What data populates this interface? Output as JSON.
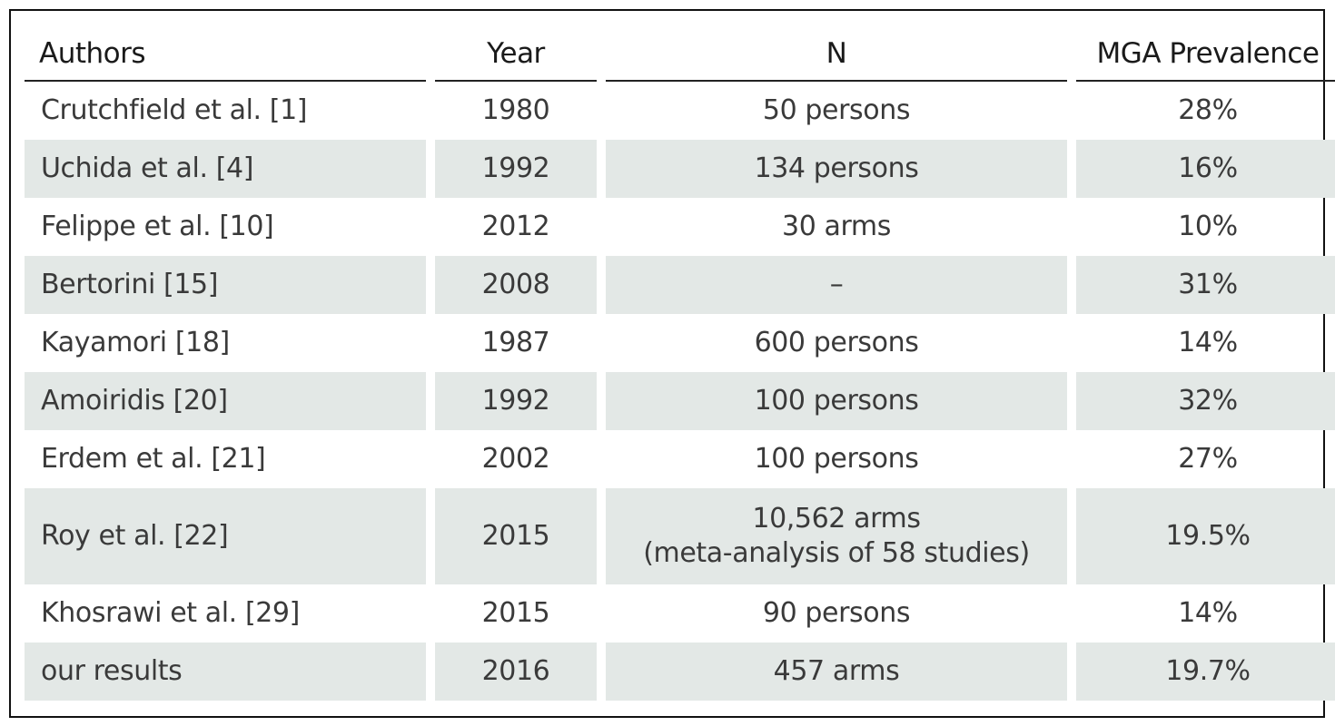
{
  "table": {
    "headers": {
      "authors": "Authors",
      "year": "Year",
      "n": "N",
      "prevalence": "MGA Prevalence"
    },
    "rows": [
      {
        "authors": "Crutchfield et al. [1]",
        "year": "1980",
        "n": "50 persons",
        "n_note": "",
        "prevalence": "28%"
      },
      {
        "authors": "Uchida et al. [4]",
        "year": "1992",
        "n": "134 persons",
        "n_note": "",
        "prevalence": "16%"
      },
      {
        "authors": "Felippe et al. [10]",
        "year": "2012",
        "n": "30 arms",
        "n_note": "",
        "prevalence": "10%"
      },
      {
        "authors": "Bertorini [15]",
        "year": "2008",
        "n": "–",
        "n_note": "",
        "prevalence": "31%"
      },
      {
        "authors": "Kayamori [18]",
        "year": "1987",
        "n": "600 persons",
        "n_note": "",
        "prevalence": "14%"
      },
      {
        "authors": "Amoiridis [20]",
        "year": "1992",
        "n": "100 persons",
        "n_note": "",
        "prevalence": "32%"
      },
      {
        "authors": "Erdem et al. [21]",
        "year": "2002",
        "n": "100 persons",
        "n_note": "",
        "prevalence": "27%"
      },
      {
        "authors": "Roy et al. [22]",
        "year": "2015",
        "n": "10,562 arms",
        "n_note": "(meta-analysis of 58 studies)",
        "prevalence": "19.5%"
      },
      {
        "authors": "Khosrawi et al. [29]",
        "year": "2015",
        "n": "90 persons",
        "n_note": "",
        "prevalence": "14%"
      },
      {
        "authors": "our results",
        "year": "2016",
        "n": "457 arms",
        "n_note": "",
        "prevalence": "19.7%"
      }
    ]
  },
  "colors": {
    "shaded_row": "#e3e8e6",
    "border": "#111111"
  }
}
